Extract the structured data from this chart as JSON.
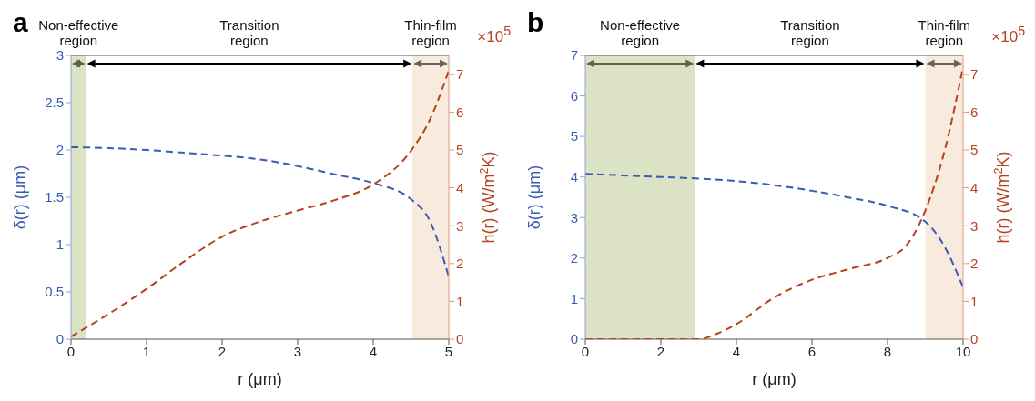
{
  "chart_data": [
    {
      "type": "line",
      "title": "a",
      "xlabel": "r (μm)",
      "ylabel": "δ(r) (μm)",
      "y2label": "h(r) (W/m$^{2}$K)",
      "annotations": [
        "Transition region",
        "×10$^{5}$"
      ],
      "xlim": [
        0,
        5
      ],
      "xticks": [
        0,
        1,
        2,
        3,
        4,
        5
      ],
      "ylim": [
        0,
        3
      ],
      "yticks": [
        0,
        0.5,
        1,
        1.5,
        2,
        2.5,
        3
      ],
      "y2lim": [
        0,
        7.5
      ],
      "y2ticks": [
        0,
        1,
        2,
        3,
        4,
        5,
        6,
        7
      ],
      "line_style": "dashed",
      "marker": "none",
      "bands": [
        {
          "axis": "x",
          "from": 0,
          "to": 0.2,
          "label": "Non-effective region",
          "color": "#dce3c4"
        },
        {
          "axis": "x",
          "from": 4.52,
          "to": 5,
          "label": "Thin-film region",
          "color": "#f8ebdd"
        }
      ],
      "series": [
        {
          "color": "#3a5bb5",
          "x": [
            0,
            0.5,
            1,
            1.5,
            2,
            2.5,
            3,
            3.5,
            4,
            4.5,
            4.75,
            5
          ],
          "values": [
            2.03,
            2.02,
            2.0,
            1.97,
            1.94,
            1.9,
            1.83,
            1.74,
            1.65,
            1.48,
            1.25,
            0.66
          ]
        },
        {
          "color": "#b5421d",
          "axis": "y2",
          "x": [
            0,
            0.5,
            1,
            1.5,
            2,
            2.5,
            3,
            3.5,
            4,
            4.5,
            4.75,
            5
          ],
          "values": [
            0.07,
            0.67,
            1.33,
            2.06,
            2.71,
            3.11,
            3.4,
            3.68,
            4.09,
            4.98,
            5.8,
            7.1
          ]
        }
      ]
    },
    {
      "type": "line",
      "title": "b",
      "xlabel": "r (μm)",
      "ylabel": "δ(r) (μm)",
      "y2label": "h(r) (W/m$^{2}$K)",
      "annotations": [
        "Transition region",
        "×10$^{5}$"
      ],
      "xlim": [
        0,
        10
      ],
      "xticks": [
        0,
        2,
        4,
        6,
        8,
        10
      ],
      "ylim": [
        0,
        7
      ],
      "yticks": [
        0,
        1,
        2,
        3,
        4,
        5,
        6,
        7
      ],
      "y2lim": [
        0,
        7.5
      ],
      "y2ticks": [
        0,
        1,
        2,
        3,
        4,
        5,
        6,
        7
      ],
      "line_style": "dashed",
      "marker": "none",
      "bands": [
        {
          "axis": "x",
          "from": 0,
          "to": 2.9,
          "label": "Non-effective region",
          "color": "#dce3c4"
        },
        {
          "axis": "x",
          "from": 9,
          "to": 10,
          "label": "Thin-film region",
          "color": "#f8ebdd"
        }
      ],
      "series": [
        {
          "color": "#3a5bb5",
          "x": [
            0,
            1,
            2,
            3,
            4,
            5,
            6,
            7,
            8,
            9,
            9.5,
            10
          ],
          "values": [
            4.08,
            4.04,
            4.0,
            3.96,
            3.9,
            3.8,
            3.66,
            3.49,
            3.29,
            2.9,
            2.3,
            1.28
          ]
        },
        {
          "color": "#b5421d",
          "axis": "y2",
          "x": [
            0,
            1,
            2,
            3,
            3.5,
            4,
            5,
            6,
            7,
            8,
            8.5,
            9,
            9.5,
            10
          ],
          "values": [
            0,
            0,
            0,
            0,
            0.15,
            0.4,
            1.1,
            1.57,
            1.86,
            2.15,
            2.48,
            3.4,
            4.94,
            7.2
          ]
        }
      ]
    }
  ]
}
